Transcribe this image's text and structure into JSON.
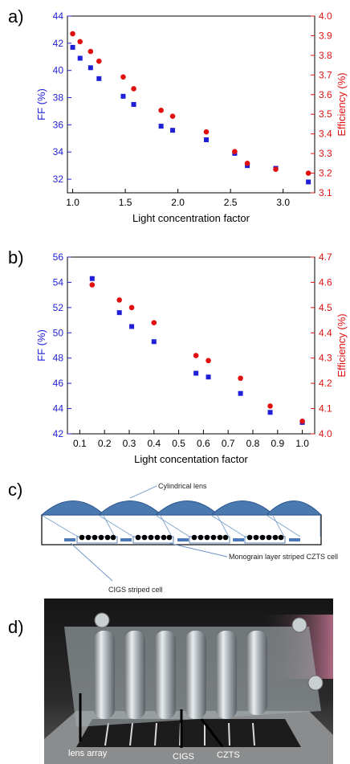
{
  "figure": {
    "panel_labels": [
      "a)",
      "b)",
      "c)",
      "d)"
    ]
  },
  "chart_data": [
    {
      "type": "scatter",
      "panel": "a)",
      "xlabel": "Light concentration factor",
      "ylabel_left": "FF (%)",
      "ylabel_right": "Efficiency (%)",
      "xlim": [
        0.95,
        3.3
      ],
      "ylim_left": [
        31,
        44
      ],
      "ylim_right": [
        3.1,
        4.0
      ],
      "x_ticks": [
        "1.0",
        "1.5",
        "2.0",
        "2.5",
        "3.0"
      ],
      "y_ticks_left": [
        "32",
        "34",
        "36",
        "38",
        "40",
        "42",
        "44"
      ],
      "y_ticks_right": [
        "3.1",
        "3.2",
        "3.3",
        "3.4",
        "3.5",
        "3.6",
        "3.7",
        "3.8",
        "3.9",
        "4.0"
      ],
      "colors": {
        "ff": "#1f1fd6",
        "eff": "#e01010"
      },
      "series": [
        {
          "axis": "left",
          "marker": "square",
          "x": [
            1.0,
            1.07,
            1.17,
            1.25,
            1.48,
            1.58,
            1.84,
            1.95,
            2.27,
            2.54,
            2.66,
            2.93,
            3.24
          ],
          "y": [
            41.7,
            40.9,
            40.2,
            39.4,
            38.1,
            37.5,
            35.9,
            35.6,
            34.9,
            33.9,
            33.0,
            32.8,
            31.8
          ]
        },
        {
          "axis": "right",
          "marker": "circle",
          "x": [
            1.0,
            1.07,
            1.17,
            1.25,
            1.48,
            1.58,
            1.84,
            1.95,
            2.27,
            2.54,
            2.66,
            2.93,
            3.24
          ],
          "y": [
            3.91,
            3.87,
            3.82,
            3.77,
            3.69,
            3.63,
            3.52,
            3.49,
            3.41,
            3.31,
            3.25,
            3.22,
            3.2
          ]
        }
      ]
    },
    {
      "type": "scatter",
      "panel": "b)",
      "xlabel": "Light concentation factor",
      "ylabel_left": "FF (%)",
      "ylabel_right": "Efficiency (%)",
      "xlim": [
        0.05,
        1.05
      ],
      "ylim_left": [
        42,
        56
      ],
      "ylim_right": [
        4.0,
        4.7
      ],
      "x_ticks": [
        "0.1",
        "0.2",
        "0.3",
        "0.4",
        "0.5",
        "0.6",
        "0.7",
        "0.8",
        "0.9",
        "1.0"
      ],
      "y_ticks_left": [
        "42",
        "44",
        "46",
        "48",
        "50",
        "52",
        "54",
        "56"
      ],
      "y_ticks_right": [
        "4.0",
        "4.1",
        "4.2",
        "4.3",
        "4.4",
        "4.5",
        "4.6",
        "4.7"
      ],
      "colors": {
        "ff": "#1f1fd6",
        "eff": "#e01010"
      },
      "series": [
        {
          "axis": "left",
          "marker": "square",
          "x": [
            0.15,
            0.26,
            0.31,
            0.4,
            0.57,
            0.62,
            0.75,
            0.87,
            1.0
          ],
          "y": [
            54.3,
            51.6,
            50.5,
            49.3,
            46.8,
            46.5,
            45.2,
            43.7,
            42.9
          ]
        },
        {
          "axis": "right",
          "marker": "circle",
          "x": [
            0.15,
            0.26,
            0.31,
            0.4,
            0.57,
            0.62,
            0.75,
            0.87,
            1.0
          ],
          "y": [
            4.59,
            4.53,
            4.5,
            4.44,
            4.31,
            4.29,
            4.22,
            4.11,
            4.05
          ]
        }
      ]
    }
  ],
  "diagram": {
    "labels": {
      "lens": "Cylindrical lens",
      "czts": "Monograin layer striped CZTS cell",
      "cigs": "CIGS striped cell"
    },
    "colors": {
      "lens": "#3a6ea8",
      "lens_edge": "#2a5590",
      "cigs": "#4a78b8",
      "grain": "#000000"
    }
  },
  "photo": {
    "labels": {
      "lens_array": "lens array",
      "cigs": "CIGS",
      "czts": "CZTS"
    }
  }
}
